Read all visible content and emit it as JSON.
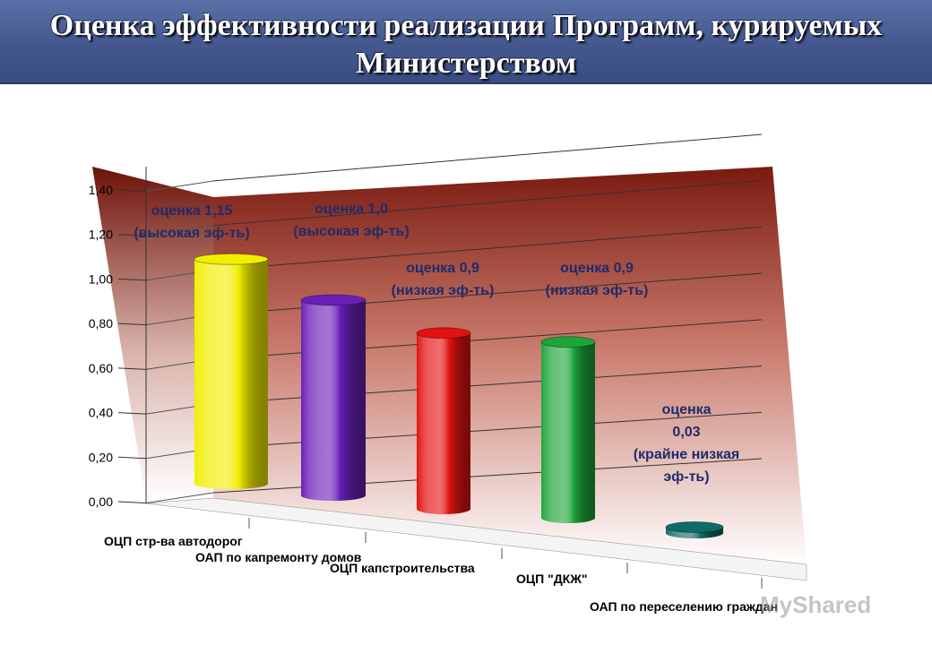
{
  "title": "Оценка эффективности реализации Программ, курируемых Министерством",
  "watermark": "MyShared",
  "chart_data": {
    "type": "bar",
    "categories": [
      "ОЦП стр-ва автодорог",
      "ОАП по капремонту домов",
      "ОЦП капстроительства",
      "ОЦП \"ДКЖ\"",
      "ОАП по переселению граждан"
    ],
    "values": [
      1.15,
      1.0,
      0.9,
      0.9,
      0.03
    ],
    "colors": [
      "#f2ee00",
      "#6a1fb8",
      "#e31212",
      "#1ea53a",
      "#0f6b68"
    ],
    "ylim": [
      0,
      1.4
    ],
    "yticks": [
      "0,00",
      "0,20",
      "0,40",
      "0,60",
      "0,80",
      "1,00",
      "1,20",
      "1,40"
    ],
    "annotations": [
      [
        "оценка 1,15",
        "(высокая эф-ть)"
      ],
      [
        "оценка  1,0",
        "(высокая эф-ть)"
      ],
      [
        "оценка 0,9",
        "(низкая эф-ть)"
      ],
      [
        "оценка 0,9",
        "(низкая эф-ть)"
      ],
      [
        "оценка",
        "0,03",
        "(крайне низкая",
        "эф-ть)"
      ]
    ],
    "grid": true,
    "title": "",
    "xlabel": "",
    "ylabel": ""
  }
}
